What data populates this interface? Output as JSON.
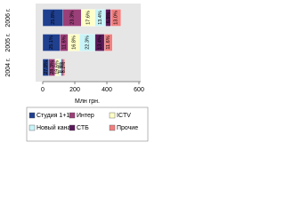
{
  "chart_data": {
    "type": "bar",
    "orientation": "horizontal",
    "stacked": true,
    "x_label": "Млн грн.",
    "categories": [
      "2006 г.",
      "2005 г.",
      "2004 г."
    ],
    "series": [
      {
        "name": "Студия 1+1",
        "color": "#1f3f8f",
        "values": [
          126,
          108,
          38
        ],
        "percent_labels": [
          "25.8%",
          "25.1%",
          "27.9%"
        ]
      },
      {
        "name": "Интер",
        "color": "#9b3f78",
        "values": [
          114,
          50,
          39
        ],
        "percent_labels": [
          "23.3%",
          "11.6%",
          "28.3%"
        ]
      },
      {
        "name": "ICTV",
        "color": "#ffffc8",
        "values": [
          86,
          72,
          27
        ],
        "percent_labels": [
          "17.6%",
          "16.8%",
          "19.6%"
        ]
      },
      {
        "name": "Новый канал",
        "color": "#c8f4f8",
        "values": [
          66,
          96,
          13
        ],
        "percent_labels": [
          "13.4%",
          "22.3%",
          "9.3%"
        ]
      },
      {
        "name": "СТБ",
        "color": "#5a1a5a",
        "values": [
          32,
          58,
          9
        ],
        "percent_labels": [
          "6.5%",
          "13.4%",
          "6.7%"
        ]
      },
      {
        "name": "Прочие",
        "color": "#f08080",
        "values": [
          64,
          50,
          11
        ],
        "percent_labels": [
          "13.0%",
          "11.6%",
          "8.2%"
        ]
      }
    ],
    "xlim": [
      0,
      600
    ],
    "xticks": [
      0,
      200,
      400,
      600
    ]
  }
}
